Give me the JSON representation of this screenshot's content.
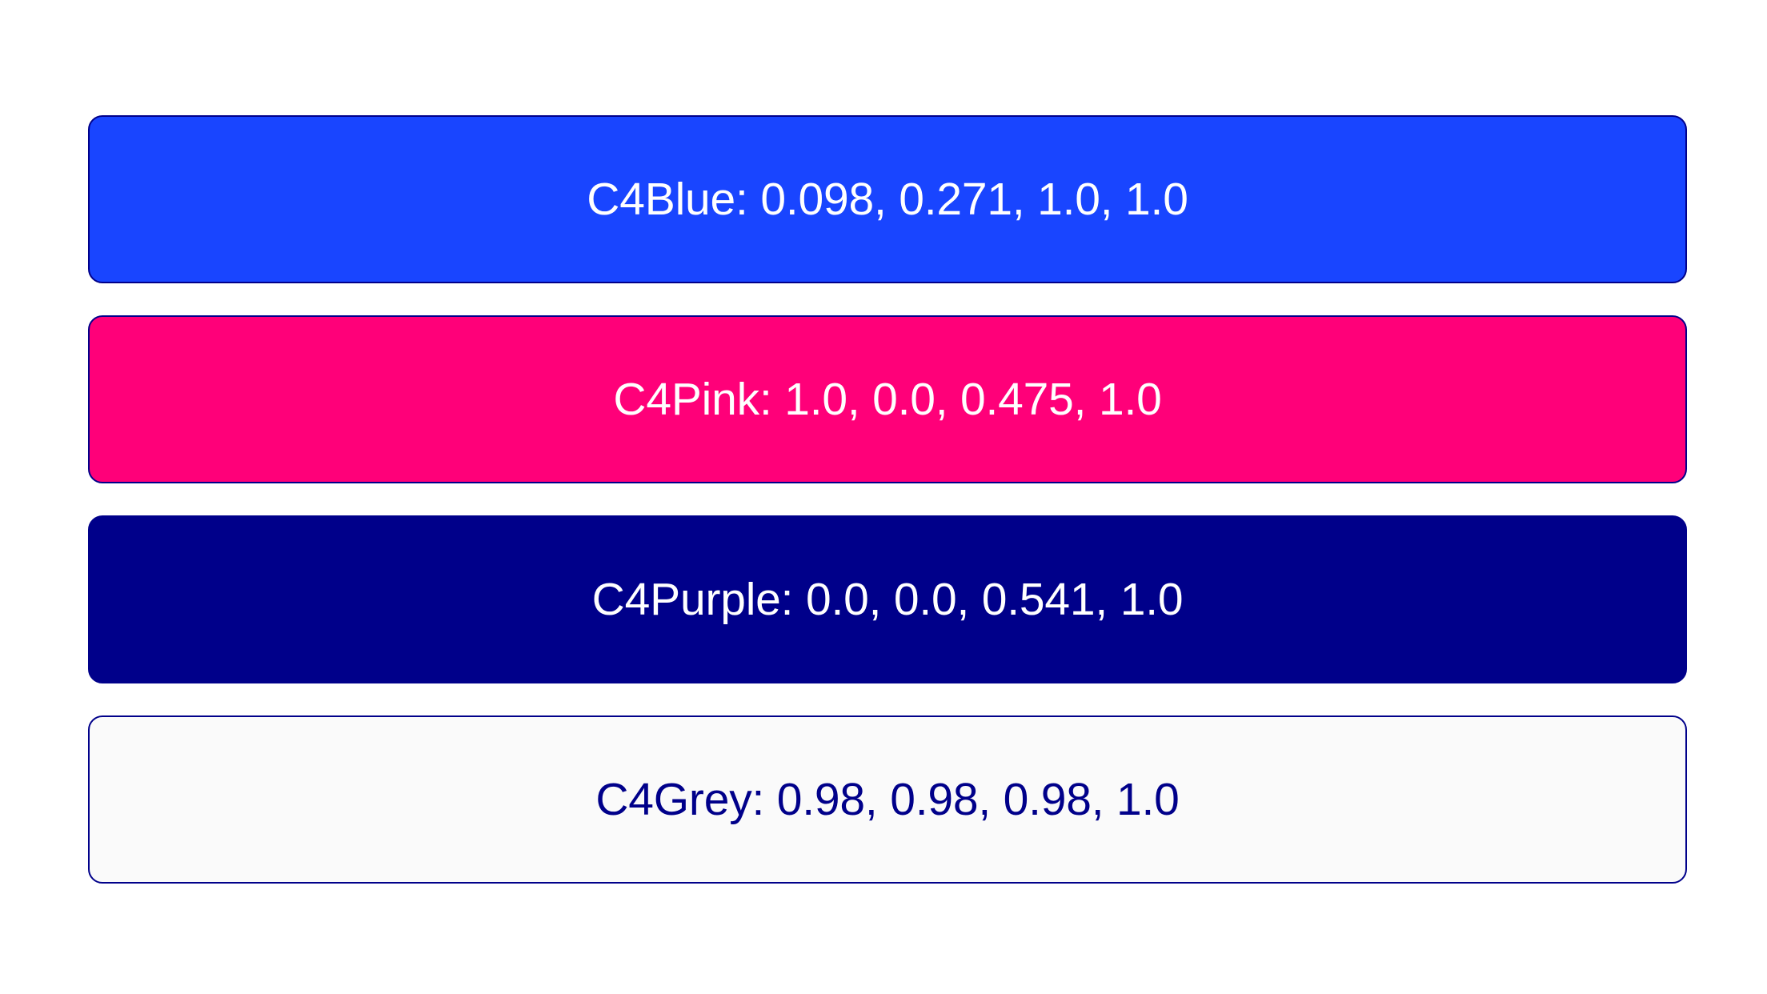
{
  "swatches": [
    {
      "label": "C4Blue: 0.098, 0.271, 1.0, 1.0",
      "fill": "#1945ff",
      "text_color": "#ffffff"
    },
    {
      "label": "C4Pink: 1.0, 0.0, 0.475, 1.0",
      "fill": "#ff0079",
      "text_color": "#ffffff"
    },
    {
      "label": "C4Purple: 0.0, 0.0, 0.541, 1.0",
      "fill": "#00008a",
      "text_color": "#ffffff"
    },
    {
      "label": "C4Grey: 0.98, 0.98, 0.98, 1.0",
      "fill": "#fafafa",
      "text_color": "#00008a"
    }
  ]
}
